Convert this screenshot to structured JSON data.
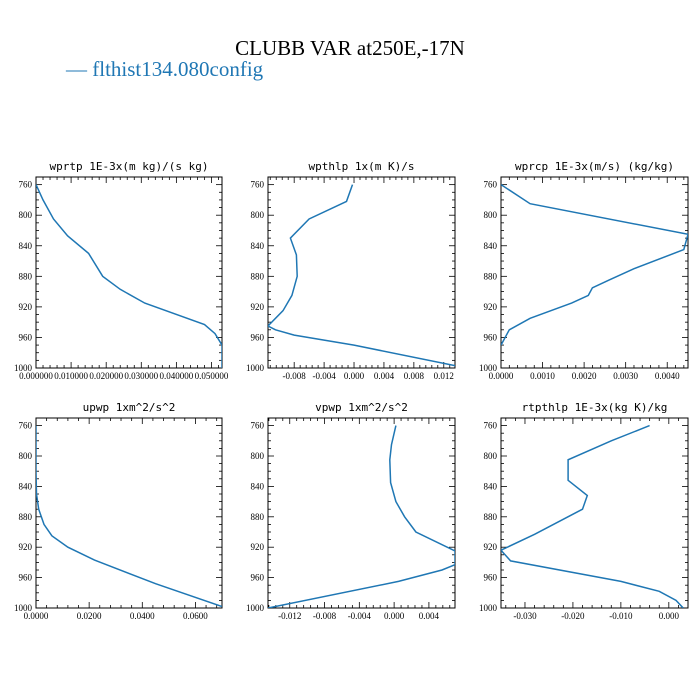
{
  "title": "CLUBB VAR at250E,-17N",
  "legend": {
    "label": "— flthist134.080config",
    "color": "#1f77b4"
  },
  "chart_data": [
    {
      "type": "line",
      "title": "wprtp  1E-3x(m kg)/(s kg)",
      "xlim": [
        0,
        0.053
      ],
      "ylim": [
        1000,
        750
      ],
      "xticks": [
        0,
        0.01,
        0.02,
        0.03,
        0.04,
        0.05
      ],
      "xtick_labels": [
        "0.000000",
        "0.010000",
        "0.020000",
        "0.030000",
        "0.040000",
        "0.050000"
      ],
      "yticks": [
        760,
        800,
        840,
        880,
        920,
        960,
        1000
      ],
      "ytick_labels": [
        "760",
        "800",
        "840",
        "880",
        "920",
        "960",
        "1000"
      ],
      "series": [
        {
          "x": [
            0.0,
            0.002,
            0.005,
            0.009,
            0.015,
            0.019,
            0.024,
            0.031,
            0.048,
            0.051,
            0.053,
            0.053
          ],
          "y": [
            760,
            780,
            805,
            827,
            850,
            880,
            897,
            915,
            943,
            955,
            970,
            1000
          ]
        }
      ]
    },
    {
      "type": "line",
      "title": "wpthlp  1x(m K)/s",
      "xlim": [
        -0.0115,
        0.0135
      ],
      "ylim": [
        1000,
        750
      ],
      "xticks": [
        -0.008,
        -0.004,
        0.0,
        0.004,
        0.008,
        0.012
      ],
      "xtick_labels": [
        "-0.008",
        "-0.004",
        "0.000",
        "0.004",
        "0.008",
        "0.012"
      ],
      "yticks": [
        760,
        800,
        840,
        880,
        920,
        960,
        1000
      ],
      "ytick_labels": [
        "760",
        "800",
        "840",
        "880",
        "920",
        "960",
        "1000"
      ],
      "series": [
        {
          "x": [
            -0.0002,
            -0.001,
            -0.006,
            -0.0085,
            -0.0077,
            -0.0076,
            -0.0083,
            -0.0095,
            -0.0115,
            -0.0105,
            -0.008,
            0.0,
            0.0135
          ],
          "y": [
            760,
            782,
            805,
            830,
            852,
            880,
            905,
            925,
            945,
            950,
            957,
            970,
            997
          ]
        }
      ]
    },
    {
      "type": "line",
      "title": "wprcp  1E-3x(m/s) (kg/kg)",
      "xlim": [
        0,
        0.0045
      ],
      "ylim": [
        1000,
        750
      ],
      "xticks": [
        0,
        0.001,
        0.002,
        0.003,
        0.004
      ],
      "xtick_labels": [
        "0.0000",
        "0.0010",
        "0.0020",
        "0.0030",
        "0.0040"
      ],
      "yticks": [
        760,
        800,
        840,
        880,
        920,
        960,
        1000
      ],
      "ytick_labels": [
        "760",
        "800",
        "840",
        "880",
        "920",
        "960",
        "1000"
      ],
      "series": [
        {
          "x": [
            0.0,
            0.0007,
            0.0045,
            0.0044,
            0.0032,
            0.0026,
            0.0022,
            0.0021,
            0.0017,
            0.0007,
            0.0002,
            0.0
          ],
          "y": [
            760,
            785,
            825,
            845,
            870,
            885,
            895,
            905,
            915,
            935,
            950,
            970
          ]
        }
      ]
    },
    {
      "type": "line",
      "title": "upwp  1xm^2/s^2",
      "xlim": [
        0,
        0.07
      ],
      "ylim": [
        1000,
        750
      ],
      "xticks": [
        0,
        0.02,
        0.04,
        0.06
      ],
      "xtick_labels": [
        "0.0000",
        "0.0200",
        "0.0400",
        "0.0600"
      ],
      "yticks": [
        760,
        800,
        840,
        880,
        920,
        960,
        1000
      ],
      "ytick_labels": [
        "760",
        "800",
        "840",
        "880",
        "920",
        "960",
        "1000"
      ],
      "series": [
        {
          "x": [
            0.0,
            0.0,
            0.0002,
            0.001,
            0.003,
            0.006,
            0.012,
            0.022,
            0.045,
            0.07
          ],
          "y": [
            760,
            820,
            850,
            870,
            890,
            905,
            920,
            937,
            968,
            998
          ]
        }
      ]
    },
    {
      "type": "line",
      "title": "vpwp  1xm^2/s^2",
      "xlim": [
        -0.0145,
        0.007
      ],
      "ylim": [
        1000,
        750
      ],
      "xticks": [
        -0.012,
        -0.008,
        -0.004,
        0.0,
        0.004
      ],
      "xtick_labels": [
        "-0.012",
        "-0.008",
        "-0.004",
        "0.000",
        "0.004"
      ],
      "yticks": [
        760,
        800,
        840,
        880,
        920,
        960,
        1000
      ],
      "ytick_labels": [
        "760",
        "800",
        "840",
        "880",
        "920",
        "960",
        "1000"
      ],
      "series": [
        {
          "x": [
            0.0002,
            -0.0003,
            -0.0005,
            -0.0004,
            0.0002,
            0.0012,
            0.0025,
            0.007,
            0.007,
            0.0055,
            0.0005,
            -0.0145
          ],
          "y": [
            760,
            785,
            805,
            835,
            860,
            880,
            900,
            925,
            943,
            950,
            965,
            1000
          ]
        }
      ]
    },
    {
      "type": "line",
      "title": "rtpthlp  1E-3x(kg K)/kg",
      "xlim": [
        -0.035,
        0.004
      ],
      "ylim": [
        1000,
        750
      ],
      "xticks": [
        -0.03,
        -0.02,
        -0.01,
        0.0
      ],
      "xtick_labels": [
        "-0.030",
        "-0.020",
        "-0.010",
        "0.000"
      ],
      "yticks": [
        760,
        800,
        840,
        880,
        920,
        960,
        1000
      ],
      "ytick_labels": [
        "760",
        "800",
        "840",
        "880",
        "920",
        "960",
        "1000"
      ],
      "series": [
        {
          "x": [
            -0.004,
            -0.012,
            -0.021,
            -0.021,
            -0.017,
            -0.018,
            -0.028,
            -0.035,
            -0.033,
            -0.01,
            -0.002,
            0.0015,
            0.003
          ],
          "y": [
            760,
            780,
            805,
            832,
            852,
            870,
            903,
            924,
            938,
            965,
            978,
            990,
            1000
          ]
        }
      ]
    }
  ]
}
